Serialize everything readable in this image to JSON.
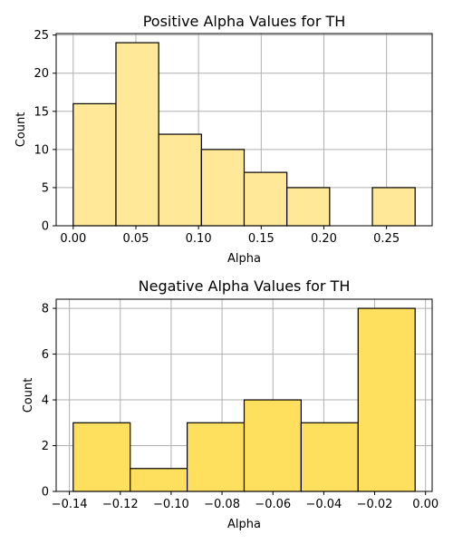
{
  "chart_data": [
    {
      "type": "bar",
      "title": "Positive Alpha Values for TH",
      "xlabel": "Alpha",
      "ylabel": "Count",
      "bin_edges": [
        0.0,
        0.0341,
        0.0682,
        0.1023,
        0.1364,
        0.1705,
        0.2046,
        0.2387,
        0.2728
      ],
      "values": [
        16,
        24,
        12,
        10,
        7,
        5,
        0,
        5
      ],
      "xlim": [
        -0.0136,
        0.2864
      ],
      "ylim": [
        0,
        25.2
      ],
      "xticks": [
        0.0,
        0.05,
        0.1,
        0.15,
        0.2,
        0.25
      ],
      "xtick_labels": [
        "0.00",
        "0.05",
        "0.10",
        "0.15",
        "0.20",
        "0.25"
      ],
      "yticks": [
        0,
        5,
        10,
        15,
        20,
        25
      ],
      "ytick_labels": [
        "0",
        "5",
        "10",
        "15",
        "20",
        "25"
      ],
      "color": "#ffe897",
      "grid": true
    },
    {
      "type": "bar",
      "title": "Negative Alpha Values for TH",
      "xlabel": "Alpha",
      "ylabel": "Count",
      "bin_edges": [
        -0.1385,
        -0.1161,
        -0.0937,
        -0.0713,
        -0.0489,
        -0.0265,
        -0.0041
      ],
      "values": [
        3,
        1,
        3,
        4,
        3,
        8
      ],
      "xlim": [
        -0.1452,
        0.0026
      ],
      "ylim": [
        0,
        8.4
      ],
      "xticks": [
        -0.14,
        -0.12,
        -0.1,
        -0.08,
        -0.06,
        -0.04,
        -0.02,
        0.0
      ],
      "xtick_labels": [
        "−0.14",
        "−0.12",
        "−0.10",
        "−0.08",
        "−0.06",
        "−0.04",
        "−0.02",
        "0.00"
      ],
      "yticks": [
        0,
        2,
        4,
        6,
        8
      ],
      "ytick_labels": [
        "0",
        "2",
        "4",
        "6",
        "8"
      ],
      "color": "#ffe05e",
      "grid": true
    }
  ]
}
